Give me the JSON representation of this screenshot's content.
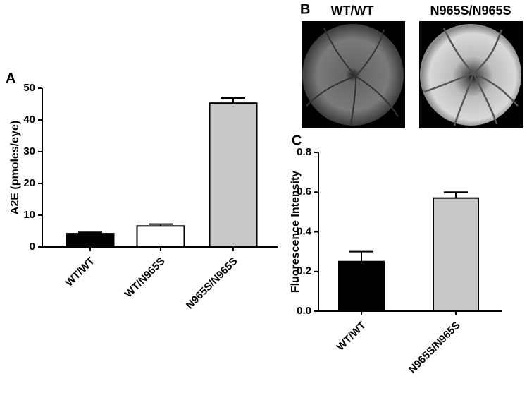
{
  "panels": {
    "a": "A",
    "b": "B",
    "c": "C"
  },
  "images": {
    "labels": [
      "WT/WT",
      "N965S/N965S"
    ]
  },
  "chart_data": [
    {
      "type": "bar",
      "ylabel": "A2E (pmoles/eye)",
      "categories": [
        "WT/WT",
        "WT/N965S",
        "N965S/N965S"
      ],
      "values": [
        4.2,
        6.6,
        45.3
      ],
      "errors": [
        0.4,
        0.6,
        1.6
      ],
      "colors": [
        "#000000",
        "#ffffff",
        "#c8c8c8"
      ],
      "ylim": [
        0,
        50
      ],
      "yticks": [
        0,
        10,
        20,
        30,
        40,
        50
      ]
    },
    {
      "type": "bar",
      "ylabel": "Fluorescence Intensity",
      "categories": [
        "WT/WT",
        "N965S/N965S"
      ],
      "values": [
        0.25,
        0.57
      ],
      "errors": [
        0.05,
        0.03
      ],
      "colors": [
        "#000000",
        "#c8c8c8"
      ],
      "ylim": [
        0,
        0.8
      ],
      "yticks": [
        {
          "value": 0,
          "label": "0.0"
        },
        0.2,
        0.4,
        0.6,
        0.8
      ]
    }
  ]
}
